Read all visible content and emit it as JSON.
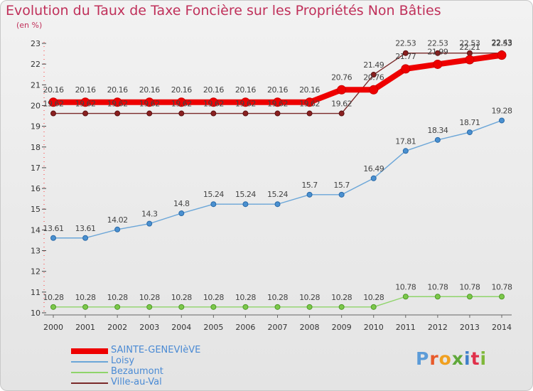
{
  "title": "Evolution du Taux de Taxe Foncière sur les Propriétés Non Bâties",
  "unit_label": "(en %)",
  "logo": {
    "p": "P",
    "r": "r",
    "o": "o",
    "x": "x",
    "i1": "i",
    "t": "t",
    "i2": "i"
  },
  "chart_data": {
    "type": "line",
    "title": "Evolution du Taux de Taxe Foncière sur les Propriétés Non Bâties",
    "ylabel": "(en %)",
    "x": [
      2000,
      2001,
      2002,
      2003,
      2004,
      2005,
      2006,
      2007,
      2008,
      2009,
      2010,
      2011,
      2012,
      2013,
      2014
    ],
    "ylim": [
      10,
      23
    ],
    "yticks": [
      10,
      11,
      12,
      13,
      14,
      15,
      16,
      17,
      18,
      19,
      20,
      21,
      22,
      23
    ],
    "grid": false,
    "legend": "bottom-left",
    "series": [
      {
        "name": "SAINTE-GENEVIèVE",
        "color": "#ee0000",
        "values": [
          20.16,
          20.16,
          20.16,
          20.16,
          20.16,
          20.16,
          20.16,
          20.16,
          20.16,
          20.76,
          20.76,
          21.77,
          21.99,
          22.21,
          22.43
        ],
        "labels": [
          "20.16",
          "20.16",
          "20.16",
          "20.16",
          "20.16",
          "20.16",
          "20.16",
          "20.16",
          "20.16",
          "20.76",
          "20.76",
          "21.77",
          "21.99",
          "22.21",
          "22.43"
        ]
      },
      {
        "name": "Loisy",
        "color": "#6ba6d8",
        "values": [
          13.61,
          13.61,
          14.02,
          14.3,
          14.8,
          15.24,
          15.24,
          15.24,
          15.7,
          15.7,
          16.49,
          17.81,
          18.34,
          18.71,
          19.28
        ],
        "labels": [
          "13.61",
          "13.61",
          "14.02",
          "14.3",
          "14.8",
          "15.24",
          "15.24",
          "15.24",
          "15.7",
          "15.7",
          "16.49",
          "17.81",
          "18.34",
          "18.71",
          "19.28"
        ]
      },
      {
        "name": "Bezaumont",
        "color": "#8fd46a",
        "values": [
          10.28,
          10.28,
          10.28,
          10.28,
          10.28,
          10.28,
          10.28,
          10.28,
          10.28,
          10.28,
          10.28,
          10.78,
          10.78,
          10.78,
          10.78
        ],
        "labels": [
          "10.28",
          "10.28",
          "10.28",
          "10.28",
          "10.28",
          "10.28",
          "10.28",
          "10.28",
          "10.28",
          "10.28",
          "10.28",
          "10.78",
          "10.78",
          "10.78",
          "10.78"
        ]
      },
      {
        "name": "Ville-au-Val",
        "color": "#7a2a2a",
        "values": [
          19.62,
          19.62,
          19.62,
          19.62,
          19.62,
          19.62,
          19.62,
          19.62,
          19.62,
          19.62,
          21.49,
          22.53,
          22.53,
          22.53,
          22.53
        ],
        "labels": [
          "19.62",
          "19.62",
          "19.62",
          "19.62",
          "19.62",
          "19.62",
          "19.62",
          "19.62",
          "19.62",
          "19.62",
          "21.49",
          "22.53",
          "22.53",
          "22.53",
          "22.53"
        ]
      }
    ]
  }
}
